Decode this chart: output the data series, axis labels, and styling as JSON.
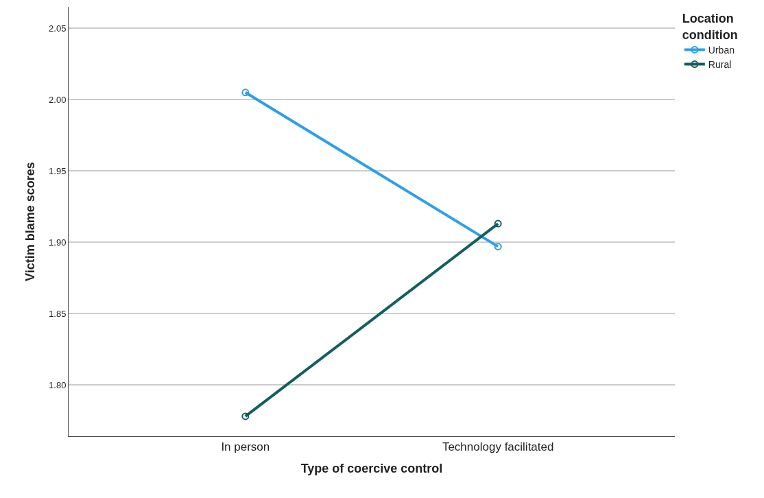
{
  "chart_data": {
    "type": "line",
    "xlabel": "Type of coercive control",
    "ylabel": "Victim blame scores",
    "legend_title": "Location condition",
    "categories": [
      "In person",
      "Technology facilitated"
    ],
    "series": [
      {
        "name": "Urban",
        "color": "#2e9fe8",
        "values": [
          2.005,
          1.897
        ]
      },
      {
        "name": "Rural",
        "color": "#135e5e",
        "values": [
          1.778,
          1.913
        ]
      }
    ],
    "ylim": [
      1.764,
      2.065
    ],
    "yticks": [
      {
        "value": 1.8,
        "label": "1.80"
      },
      {
        "value": 1.85,
        "label": "1.85"
      },
      {
        "value": 1.9,
        "label": "1.90"
      },
      {
        "value": 1.95,
        "label": "1.95"
      },
      {
        "value": 2.0,
        "label": "2.00"
      },
      {
        "value": 2.05,
        "label": "2.05"
      }
    ],
    "grid": "y",
    "legend": "top right",
    "marker": "circle",
    "line_style": "solid"
  }
}
